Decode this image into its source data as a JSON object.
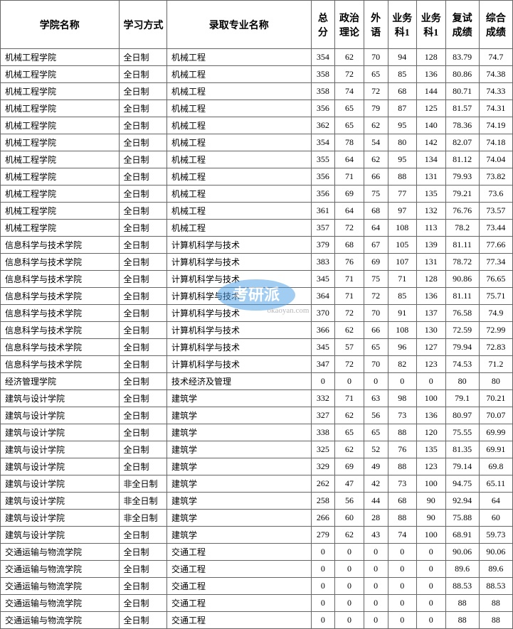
{
  "headers": {
    "college": "学院名称",
    "mode": "学习方式",
    "major": "录取专业名称",
    "total": "总分",
    "politics": "政治理论",
    "foreign": "外语",
    "subj1": "业务科1",
    "subj2": "业务科1",
    "retest": "复试成绩",
    "final": "综合成绩"
  },
  "rows": [
    {
      "college": "机械工程学院",
      "mode": "全日制",
      "major": "机械工程",
      "total": "354",
      "politics": "62",
      "foreign": "70",
      "subj1": "94",
      "subj2": "128",
      "retest": "83.79",
      "final": "74.7"
    },
    {
      "college": "机械工程学院",
      "mode": "全日制",
      "major": "机械工程",
      "total": "358",
      "politics": "72",
      "foreign": "65",
      "subj1": "85",
      "subj2": "136",
      "retest": "80.86",
      "final": "74.38"
    },
    {
      "college": "机械工程学院",
      "mode": "全日制",
      "major": "机械工程",
      "total": "358",
      "politics": "74",
      "foreign": "72",
      "subj1": "68",
      "subj2": "144",
      "retest": "80.71",
      "final": "74.33"
    },
    {
      "college": "机械工程学院",
      "mode": "全日制",
      "major": "机械工程",
      "total": "356",
      "politics": "65",
      "foreign": "79",
      "subj1": "87",
      "subj2": "125",
      "retest": "81.57",
      "final": "74.31"
    },
    {
      "college": "机械工程学院",
      "mode": "全日制",
      "major": "机械工程",
      "total": "362",
      "politics": "65",
      "foreign": "62",
      "subj1": "95",
      "subj2": "140",
      "retest": "78.36",
      "final": "74.19"
    },
    {
      "college": "机械工程学院",
      "mode": "全日制",
      "major": "机械工程",
      "total": "354",
      "politics": "78",
      "foreign": "54",
      "subj1": "80",
      "subj2": "142",
      "retest": "82.07",
      "final": "74.18"
    },
    {
      "college": "机械工程学院",
      "mode": "全日制",
      "major": "机械工程",
      "total": "355",
      "politics": "64",
      "foreign": "62",
      "subj1": "95",
      "subj2": "134",
      "retest": "81.12",
      "final": "74.04"
    },
    {
      "college": "机械工程学院",
      "mode": "全日制",
      "major": "机械工程",
      "total": "356",
      "politics": "71",
      "foreign": "66",
      "subj1": "88",
      "subj2": "131",
      "retest": "79.93",
      "final": "73.82"
    },
    {
      "college": "机械工程学院",
      "mode": "全日制",
      "major": "机械工程",
      "total": "356",
      "politics": "69",
      "foreign": "75",
      "subj1": "77",
      "subj2": "135",
      "retest": "79.21",
      "final": "73.6"
    },
    {
      "college": "机械工程学院",
      "mode": "全日制",
      "major": "机械工程",
      "total": "361",
      "politics": "64",
      "foreign": "68",
      "subj1": "97",
      "subj2": "132",
      "retest": "76.76",
      "final": "73.57"
    },
    {
      "college": "机械工程学院",
      "mode": "全日制",
      "major": "机械工程",
      "total": "357",
      "politics": "72",
      "foreign": "64",
      "subj1": "108",
      "subj2": "113",
      "retest": "78.2",
      "final": "73.44"
    },
    {
      "college": "信息科学与技术学院",
      "mode": "全日制",
      "major": "计算机科学与技术",
      "total": "379",
      "politics": "68",
      "foreign": "67",
      "subj1": "105",
      "subj2": "139",
      "retest": "81.11",
      "final": "77.66"
    },
    {
      "college": "信息科学与技术学院",
      "mode": "全日制",
      "major": "计算机科学与技术",
      "total": "383",
      "politics": "76",
      "foreign": "69",
      "subj1": "107",
      "subj2": "131",
      "retest": "78.72",
      "final": "77.34"
    },
    {
      "college": "信息科学与技术学院",
      "mode": "全日制",
      "major": "计算机科学与技术",
      "total": "345",
      "politics": "71",
      "foreign": "75",
      "subj1": "71",
      "subj2": "128",
      "retest": "90.86",
      "final": "76.65"
    },
    {
      "college": "信息科学与技术学院",
      "mode": "全日制",
      "major": "计算机科学与技术",
      "total": "364",
      "politics": "71",
      "foreign": "72",
      "subj1": "85",
      "subj2": "136",
      "retest": "81.11",
      "final": "75.71"
    },
    {
      "college": "信息科学与技术学院",
      "mode": "全日制",
      "major": "计算机科学与技术",
      "total": "370",
      "politics": "72",
      "foreign": "70",
      "subj1": "91",
      "subj2": "137",
      "retest": "76.58",
      "final": "74.9"
    },
    {
      "college": "信息科学与技术学院",
      "mode": "全日制",
      "major": "计算机科学与技术",
      "total": "366",
      "politics": "62",
      "foreign": "66",
      "subj1": "108",
      "subj2": "130",
      "retest": "72.59",
      "final": "72.99"
    },
    {
      "college": "信息科学与技术学院",
      "mode": "全日制",
      "major": "计算机科学与技术",
      "total": "345",
      "politics": "57",
      "foreign": "65",
      "subj1": "96",
      "subj2": "127",
      "retest": "79.94",
      "final": "72.83"
    },
    {
      "college": "信息科学与技术学院",
      "mode": "全日制",
      "major": "计算机科学与技术",
      "total": "347",
      "politics": "72",
      "foreign": "70",
      "subj1": "82",
      "subj2": "123",
      "retest": "74.53",
      "final": "71.2"
    },
    {
      "college": "经济管理学院",
      "mode": "全日制",
      "major": "技术经济及管理",
      "total": "0",
      "politics": "0",
      "foreign": "0",
      "subj1": "0",
      "subj2": "0",
      "retest": "80",
      "final": "80"
    },
    {
      "college": "建筑与设计学院",
      "mode": "全日制",
      "major": "建筑学",
      "total": "332",
      "politics": "71",
      "foreign": "63",
      "subj1": "98",
      "subj2": "100",
      "retest": "79.1",
      "final": "70.21"
    },
    {
      "college": "建筑与设计学院",
      "mode": "全日制",
      "major": "建筑学",
      "total": "327",
      "politics": "62",
      "foreign": "56",
      "subj1": "73",
      "subj2": "136",
      "retest": "80.97",
      "final": "70.07"
    },
    {
      "college": "建筑与设计学院",
      "mode": "全日制",
      "major": "建筑学",
      "total": "338",
      "politics": "65",
      "foreign": "65",
      "subj1": "88",
      "subj2": "120",
      "retest": "75.55",
      "final": "69.99"
    },
    {
      "college": "建筑与设计学院",
      "mode": "全日制",
      "major": "建筑学",
      "total": "325",
      "politics": "62",
      "foreign": "52",
      "subj1": "76",
      "subj2": "135",
      "retest": "81.35",
      "final": "69.91"
    },
    {
      "college": "建筑与设计学院",
      "mode": "全日制",
      "major": "建筑学",
      "total": "329",
      "politics": "69",
      "foreign": "49",
      "subj1": "88",
      "subj2": "123",
      "retest": "79.14",
      "final": "69.8"
    },
    {
      "college": "建筑与设计学院",
      "mode": "非全日制",
      "major": "建筑学",
      "total": "262",
      "politics": "47",
      "foreign": "42",
      "subj1": "73",
      "subj2": "100",
      "retest": "94.75",
      "final": "65.11"
    },
    {
      "college": "建筑与设计学院",
      "mode": "非全日制",
      "major": "建筑学",
      "total": "258",
      "politics": "56",
      "foreign": "44",
      "subj1": "68",
      "subj2": "90",
      "retest": "92.94",
      "final": "64"
    },
    {
      "college": "建筑与设计学院",
      "mode": "非全日制",
      "major": "建筑学",
      "total": "266",
      "politics": "60",
      "foreign": "28",
      "subj1": "88",
      "subj2": "90",
      "retest": "75.88",
      "final": "60"
    },
    {
      "college": "建筑与设计学院",
      "mode": "全日制",
      "major": "建筑学",
      "total": "279",
      "politics": "62",
      "foreign": "43",
      "subj1": "74",
      "subj2": "100",
      "retest": "68.91",
      "final": "59.73"
    },
    {
      "college": "交通运输与物流学院",
      "mode": "全日制",
      "major": "交通工程",
      "total": "0",
      "politics": "0",
      "foreign": "0",
      "subj1": "0",
      "subj2": "0",
      "retest": "90.06",
      "final": "90.06"
    },
    {
      "college": "交通运输与物流学院",
      "mode": "全日制",
      "major": "交通工程",
      "total": "0",
      "politics": "0",
      "foreign": "0",
      "subj1": "0",
      "subj2": "0",
      "retest": "89.6",
      "final": "89.6"
    },
    {
      "college": "交通运输与物流学院",
      "mode": "全日制",
      "major": "交通工程",
      "total": "0",
      "politics": "0",
      "foreign": "0",
      "subj1": "0",
      "subj2": "0",
      "retest": "88.53",
      "final": "88.53"
    },
    {
      "college": "交通运输与物流学院",
      "mode": "全日制",
      "major": "交通工程",
      "total": "0",
      "politics": "0",
      "foreign": "0",
      "subj1": "0",
      "subj2": "0",
      "retest": "88",
      "final": "88"
    },
    {
      "college": "交通运输与物流学院",
      "mode": "全日制",
      "major": "交通工程",
      "total": "0",
      "politics": "0",
      "foreign": "0",
      "subj1": "0",
      "subj2": "0",
      "retest": "88",
      "final": "88"
    }
  ],
  "watermark": {
    "text": "考研派",
    "subtext": "okaoyan.com",
    "bg_color": "#4a9de8",
    "text_color": "#ffffff"
  },
  "styling": {
    "border_color": "#666666",
    "bg_color": "#ffffff",
    "header_fontsize": 14,
    "cell_fontsize": 12,
    "col_widths": {
      "college": 148,
      "mode": 60,
      "major": 180,
      "total": 30,
      "politics": 36,
      "foreign": 30,
      "subj1": 36,
      "subj2": 36,
      "retest": 42,
      "final": 42
    }
  }
}
